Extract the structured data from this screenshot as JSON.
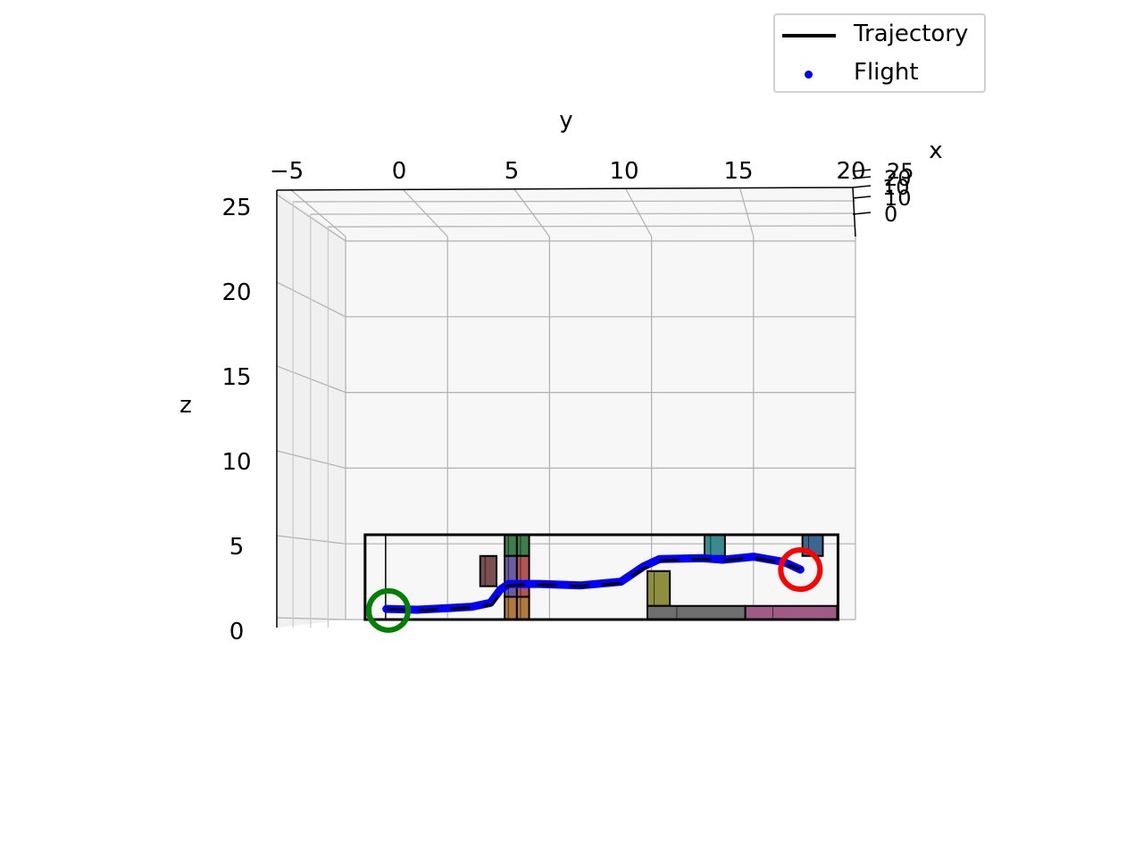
{
  "chart_data": {
    "type": "line3d",
    "xlabel": "x",
    "ylabel": "y",
    "zlabel": "z",
    "y_ticks": [
      "−5",
      "0",
      "5",
      "10",
      "15",
      "20"
    ],
    "z_ticks": [
      "0",
      "5",
      "10",
      "15",
      "20",
      "25"
    ],
    "x_ticks": [
      "0",
      "10",
      "10",
      "20",
      "25"
    ],
    "ylim": [
      -5,
      20
    ],
    "zlim": [
      0,
      25
    ],
    "legend": {
      "position": "top-right",
      "entries": [
        {
          "label": "Trajectory",
          "style": "line",
          "color": "#000000"
        },
        {
          "label": "Flight",
          "style": "point",
          "color": "#0000ff"
        }
      ]
    },
    "series": [
      {
        "name": "Trajectory",
        "color": "#000000",
        "dash": true,
        "points": [
          [
            -3,
            0.7
          ],
          [
            -1.5,
            0.6
          ],
          [
            0,
            0.7
          ],
          [
            1.2,
            0.8
          ],
          [
            2.2,
            1.0
          ],
          [
            2.8,
            2.2
          ],
          [
            3.5,
            2.3
          ],
          [
            5,
            2.3
          ],
          [
            6.5,
            2.2
          ],
          [
            8.5,
            2.4
          ],
          [
            9.5,
            3.3
          ],
          [
            10.5,
            3.9
          ],
          [
            12.5,
            4.0
          ],
          [
            13.5,
            3.9
          ],
          [
            15,
            4.1
          ],
          [
            16.5,
            3.7
          ],
          [
            17.3,
            3.3
          ]
        ]
      },
      {
        "name": "Flight",
        "color": "#0000ff",
        "points": [
          [
            -3,
            0.7
          ],
          [
            -1.5,
            0.65
          ],
          [
            0,
            0.75
          ],
          [
            1.2,
            0.85
          ],
          [
            2.1,
            1.1
          ],
          [
            2.6,
            2.0
          ],
          [
            3.0,
            2.35
          ],
          [
            4.5,
            2.35
          ],
          [
            6.5,
            2.25
          ],
          [
            8.5,
            2.5
          ],
          [
            9.6,
            3.5
          ],
          [
            10.4,
            4.0
          ],
          [
            12.5,
            4.05
          ],
          [
            13.5,
            3.95
          ],
          [
            15,
            4.15
          ],
          [
            16.5,
            3.8
          ],
          [
            17.3,
            3.3
          ]
        ]
      }
    ],
    "start_marker": {
      "y": -2.9,
      "z": 0.6,
      "color": "#008000"
    },
    "goal_marker": {
      "y": 17.3,
      "z": 3.3,
      "color": "#ff0000"
    },
    "obstacles": [
      {
        "y0": 1.6,
        "y1": 2.4,
        "z0": 2.2,
        "z1": 4.2,
        "color": "#7a4f52"
      },
      {
        "y0": 2.8,
        "y1": 3.4,
        "z0": 4.2,
        "z1": 5.6,
        "color": "#3e7d4c"
      },
      {
        "y0": 3.4,
        "y1": 4.0,
        "z0": 4.2,
        "z1": 5.6,
        "color": "#3e7d4c"
      },
      {
        "y0": 2.8,
        "y1": 3.4,
        "z0": 1.5,
        "z1": 4.2,
        "color": "#6b5ea0"
      },
      {
        "y0": 3.4,
        "y1": 4.0,
        "z0": 1.5,
        "z1": 4.2,
        "color": "#b05656"
      },
      {
        "y0": 2.8,
        "y1": 3.4,
        "z0": 0.0,
        "z1": 1.5,
        "color": "#b07a3e"
      },
      {
        "y0": 3.4,
        "y1": 4.0,
        "z0": 0.0,
        "z1": 1.5,
        "color": "#b07a3e"
      },
      {
        "y0": 9.8,
        "y1": 10.9,
        "z0": 0.9,
        "z1": 3.2,
        "color": "#8e8e3f"
      },
      {
        "y0": 12.6,
        "y1": 13.6,
        "z0": 4.2,
        "z1": 5.6,
        "color": "#3a8a92"
      },
      {
        "y0": 17.4,
        "y1": 18.4,
        "z0": 4.2,
        "z1": 5.6,
        "color": "#3a6690"
      },
      {
        "y0": 9.8,
        "y1": 14.6,
        "z0": 0.0,
        "z1": 0.9,
        "color": "#6e6e6e"
      },
      {
        "y0": 14.6,
        "y1": 19.1,
        "z0": 0.0,
        "z1": 0.9,
        "color": "#a05a86"
      }
    ],
    "bounding_box": {
      "y0": -4.0,
      "y1": 19.1,
      "z0": 0.0,
      "z1": 5.6
    },
    "grid": true
  }
}
